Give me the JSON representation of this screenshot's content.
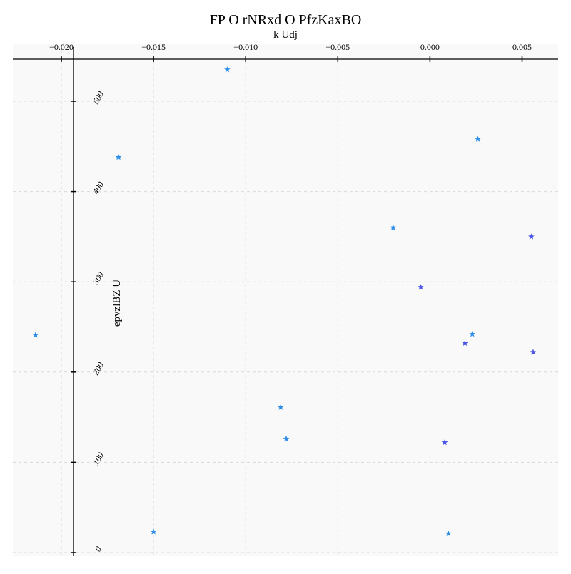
{
  "chart_data": {
    "type": "scatter",
    "title": "FP O  rNRxd O PfzKaxBO",
    "xlabel": "k Udj",
    "ylabel": "epvzlBZ U",
    "xlim": [
      -0.0218,
      0.0071
    ],
    "ylim": [
      -3,
      540
    ],
    "xticks": [
      -0.02,
      -0.015,
      -0.01,
      -0.005,
      0.0,
      0.005
    ],
    "xtick_labels": [
      "−0.020",
      "−0.015",
      "−0.010",
      "−0.005",
      "0.000",
      "0.005"
    ],
    "yticks": [
      0,
      100,
      200,
      300,
      400,
      500
    ],
    "ytick_labels": [
      "0",
      "100",
      "200",
      "300",
      "400",
      "500"
    ],
    "grid": true,
    "marker": "star",
    "colors": {
      "light": "#2f8fe8",
      "dark": "#4a55e6",
      "background": "#f8f9f8"
    },
    "series": [
      {
        "points": [
          {
            "x": -0.0214,
            "y": 241,
            "c": "light"
          },
          {
            "x": -0.0169,
            "y": 438,
            "c": "light"
          },
          {
            "x": -0.011,
            "y": 535,
            "c": "light"
          },
          {
            "x": -0.015,
            "y": 23,
            "c": "light"
          },
          {
            "x": -0.0081,
            "y": 161,
            "c": "light"
          },
          {
            "x": -0.0078,
            "y": 126,
            "c": "light"
          },
          {
            "x": -0.002,
            "y": 360,
            "c": "light"
          },
          {
            "x": -0.0005,
            "y": 294,
            "c": "dark"
          },
          {
            "x": 0.001,
            "y": 21,
            "c": "light"
          },
          {
            "x": 0.0008,
            "y": 122,
            "c": "dark"
          },
          {
            "x": 0.0019,
            "y": 232,
            "c": "dark"
          },
          {
            "x": 0.0023,
            "y": 242,
            "c": "light"
          },
          {
            "x": 0.0026,
            "y": 458,
            "c": "light"
          },
          {
            "x": 0.0055,
            "y": 350,
            "c": "dark"
          },
          {
            "x": 0.0056,
            "y": 222,
            "c": "dark"
          }
        ]
      }
    ]
  }
}
